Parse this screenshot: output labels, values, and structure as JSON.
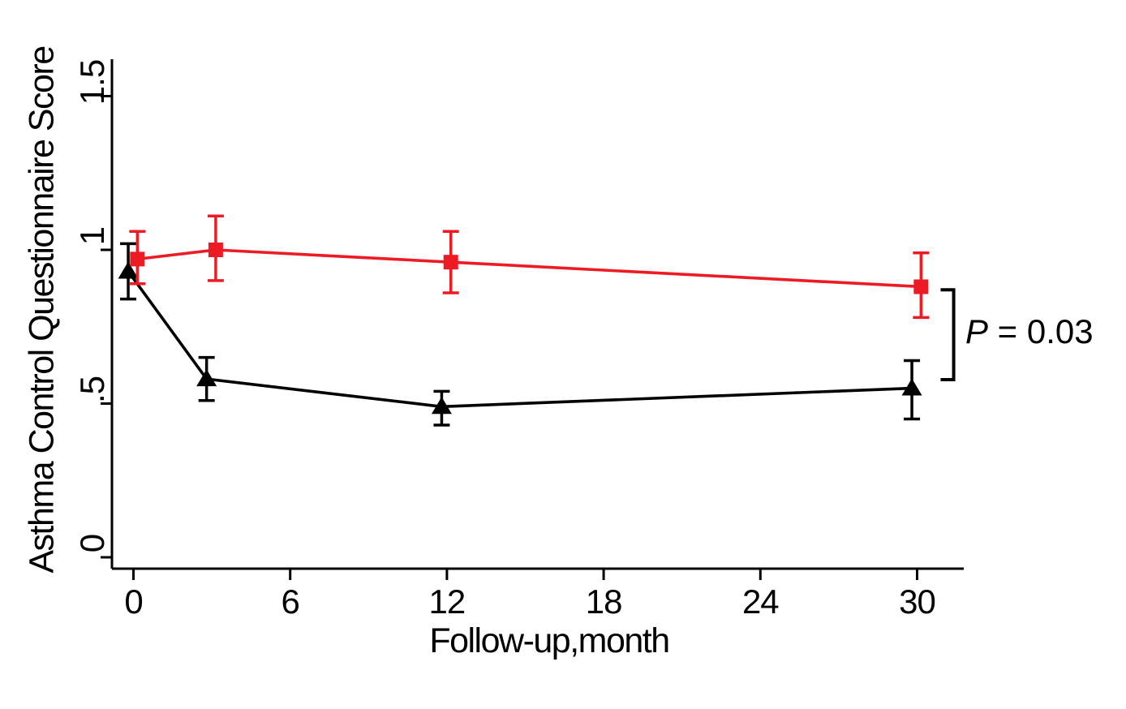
{
  "chart_data": {
    "type": "line",
    "title": "",
    "xlabel": "Follow-up,month",
    "ylabel": "Asthma Control Questionnaire Score",
    "x": [
      0,
      3,
      12,
      30
    ],
    "x_ticks": [
      "0",
      "6",
      "12",
      "18",
      "24",
      "30"
    ],
    "x_tick_values": [
      0,
      6,
      12,
      18,
      24,
      30
    ],
    "y_ticks": [
      "0",
      ".5",
      "1",
      "1.5"
    ],
    "y_tick_values": [
      0,
      0.5,
      1,
      1.5
    ],
    "xlim": [
      -0.8,
      31.8
    ],
    "ylim": [
      0,
      1.55
    ],
    "grid": false,
    "legend": "none",
    "error_bars": true,
    "series": [
      {
        "name": "black-triangle-series",
        "marker": "triangle",
        "color": "#000000",
        "x_offset_months": -0.2,
        "values": [
          0.93,
          0.58,
          0.49,
          0.55
        ],
        "ci_low": [
          0.84,
          0.51,
          0.43,
          0.45
        ],
        "ci_high": [
          1.02,
          0.65,
          0.54,
          0.64
        ]
      },
      {
        "name": "red-square-series",
        "marker": "square",
        "color": "#ed1c24",
        "x_offset_months": 0.15,
        "values": [
          0.97,
          1.0,
          0.96,
          0.88
        ],
        "ci_low": [
          0.89,
          0.9,
          0.86,
          0.78
        ],
        "ci_high": [
          1.06,
          1.11,
          1.06,
          0.99
        ]
      }
    ],
    "annotation": {
      "p_symbol": "P",
      "p_rest": " = 0.03",
      "bracket": {
        "x_month": 31.4,
        "arm_month": 30.9,
        "top_value": 0.87,
        "bottom_value": 0.578
      }
    }
  }
}
